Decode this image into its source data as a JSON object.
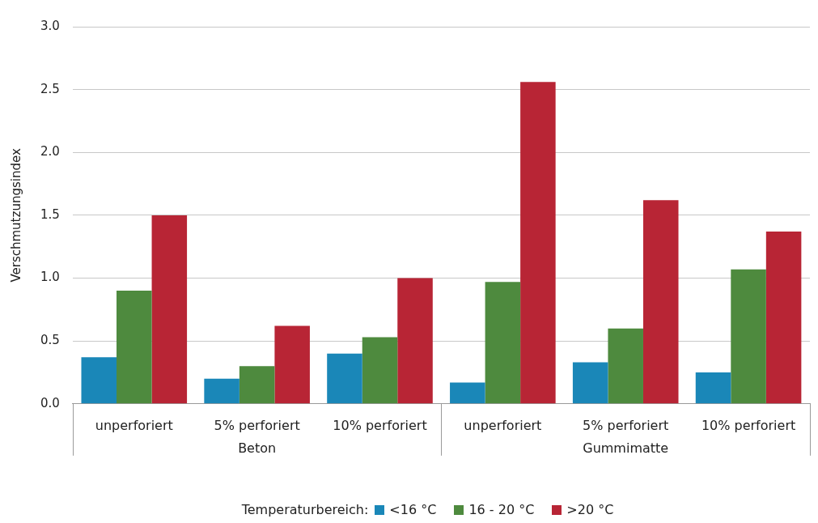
{
  "chart_data": {
    "type": "bar",
    "ylabel": "Verschmutzungsindex",
    "legend_title": "Temperaturbereich:",
    "categories": [
      "unperforiert",
      "5% perforiert",
      "10% perforiert",
      "unperforiert",
      "5% perforiert",
      "10% perforiert"
    ],
    "annotations": [
      "Beton",
      "Gummimatte"
    ],
    "series": [
      {
        "name": "<16 °C",
        "color": "#1a87b8",
        "values": [
          0.37,
          0.2,
          0.4,
          0.17,
          0.33,
          0.25
        ]
      },
      {
        "name": "16 - 20 °C",
        "color": "#4e8a3e",
        "values": [
          0.9,
          0.3,
          0.53,
          0.97,
          0.6,
          1.07
        ]
      },
      {
        "name": ">20 °C",
        "color": "#b82535",
        "values": [
          1.5,
          0.62,
          1.0,
          2.56,
          1.62,
          1.37
        ]
      }
    ],
    "ylim": [
      0,
      3
    ],
    "yticks": [
      {
        "value": 0,
        "label": "0.0"
      },
      {
        "value": 0.5,
        "label": "0.5"
      },
      {
        "value": 1,
        "label": "1.0"
      },
      {
        "value": 1.5,
        "label": "1.5"
      },
      {
        "value": 2,
        "label": "2.0"
      },
      {
        "value": 2.5,
        "label": "2.5"
      },
      {
        "value": 3,
        "label": "3.0"
      }
    ],
    "grid": "y",
    "legend": "bottom"
  }
}
